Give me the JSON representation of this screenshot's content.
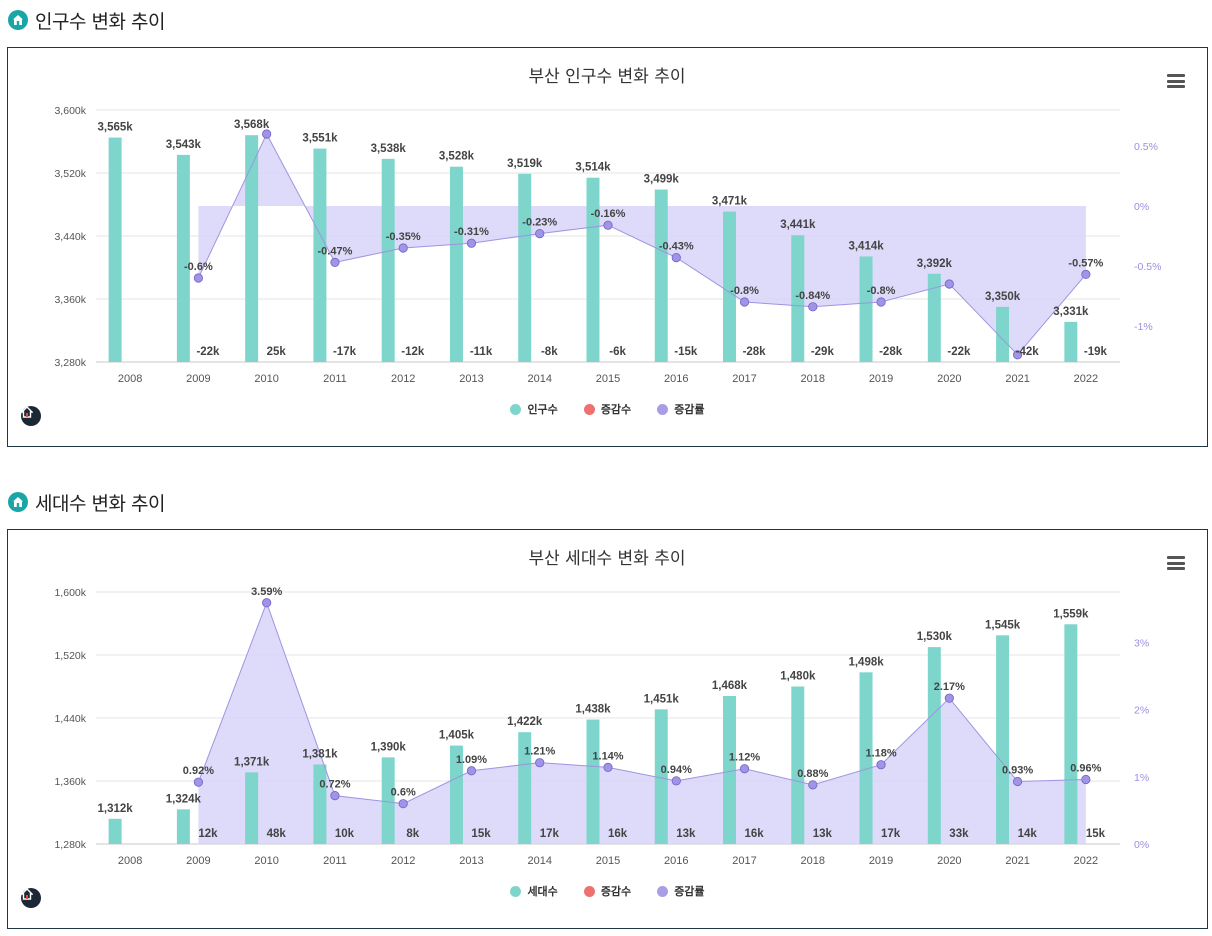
{
  "sections": [
    {
      "heading": "인구수 변화 추이",
      "chart_data": {
        "type": "bar",
        "title": "부산 인구수 변화 추이",
        "categories": [
          "2008",
          "2009",
          "2010",
          "2011",
          "2012",
          "2013",
          "2014",
          "2015",
          "2016",
          "2017",
          "2018",
          "2019",
          "2020",
          "2021",
          "2022"
        ],
        "series": [
          {
            "name": "인구수",
            "values": [
              3565,
              3543,
              3568,
              3551,
              3538,
              3528,
              3519,
              3514,
              3499,
              3471,
              3441,
              3414,
              3392,
              3350,
              3331
            ],
            "labels": [
              "3,565k",
              "3,543k",
              "3,568k",
              "3,551k",
              "3,538k",
              "3,528k",
              "3,519k",
              "3,514k",
              "3,499k",
              "3,471k",
              "3,441k",
              "3,414k",
              "3,392k",
              "3,350k",
              "3,331k"
            ]
          },
          {
            "name": "증감수",
            "values": [
              null,
              -22,
              25,
              -17,
              -12,
              -11,
              -8,
              -6,
              -15,
              -28,
              -29,
              -28,
              -22,
              -42,
              -19
            ],
            "labels": [
              "",
              "-22k",
              "25k",
              "-17k",
              "-12k",
              "-11k",
              "-8k",
              "-6k",
              "-15k",
              "-28k",
              "-29k",
              "-28k",
              "-22k",
              "-42k",
              "-19k"
            ]
          },
          {
            "name": "증감률",
            "values": [
              null,
              -0.6,
              0.6,
              -0.47,
              -0.35,
              -0.31,
              -0.23,
              -0.16,
              -0.43,
              -0.8,
              -0.84,
              -0.8,
              -0.65,
              -1.24,
              -0.57
            ],
            "labels": [
              "",
              "-0.6%",
              "",
              "-0.47%",
              "-0.35%",
              "-0.31%",
              "-0.23%",
              "-0.16%",
              "-0.43%",
              "-0.8%",
              "-0.84%",
              "-0.8%",
              "",
              "",
              "-0.57%"
            ]
          }
        ],
        "ylim": [
          3280,
          3600
        ],
        "yticks": [
          "3,280k",
          "3,360k",
          "3,440k",
          "3,520k",
          "3,600k"
        ],
        "y2lim": [
          -1.3,
          0.8
        ],
        "y2ticks": [
          {
            "v": 0.5,
            "label": "0.5%"
          },
          {
            "v": 0,
            "label": "0%"
          },
          {
            "v": -0.5,
            "label": "-0.5%"
          },
          {
            "v": -1,
            "label": "-1%"
          }
        ],
        "legend": [
          "인구수",
          "증감수",
          "증감률"
        ]
      }
    },
    {
      "heading": "세대수 변화 추이",
      "chart_data": {
        "type": "bar",
        "title": "부산 세대수 변화 추이",
        "categories": [
          "2008",
          "2009",
          "2010",
          "2011",
          "2012",
          "2013",
          "2014",
          "2015",
          "2016",
          "2017",
          "2018",
          "2019",
          "2020",
          "2021",
          "2022"
        ],
        "series": [
          {
            "name": "세대수",
            "values": [
              1312,
              1324,
              1371,
              1381,
              1390,
              1405,
              1422,
              1438,
              1451,
              1468,
              1480,
              1498,
              1530,
              1545,
              1559
            ],
            "labels": [
              "1,312k",
              "1,324k",
              "1,371k",
              "1,381k",
              "1,390k",
              "1,405k",
              "1,422k",
              "1,438k",
              "1,451k",
              "1,468k",
              "1,480k",
              "1,498k",
              "1,530k",
              "1,545k",
              "1,559k"
            ]
          },
          {
            "name": "증감수",
            "values": [
              null,
              12,
              48,
              10,
              8,
              15,
              17,
              16,
              13,
              16,
              13,
              17,
              33,
              14,
              15
            ],
            "labels": [
              "",
              "12k",
              "48k",
              "10k",
              "8k",
              "15k",
              "17k",
              "16k",
              "13k",
              "16k",
              "13k",
              "17k",
              "33k",
              "14k",
              "15k"
            ]
          },
          {
            "name": "증감률",
            "values": [
              null,
              0.92,
              3.59,
              0.72,
              0.6,
              1.09,
              1.21,
              1.14,
              0.94,
              1.12,
              0.88,
              1.18,
              2.17,
              0.93,
              0.96
            ],
            "labels": [
              "",
              "0.92%",
              "3.59%",
              "0.72%",
              "0.6%",
              "1.09%",
              "1.21%",
              "1.14%",
              "0.94%",
              "1.12%",
              "0.88%",
              "1.18%",
              "2.17%",
              "0.93%",
              "0.96%"
            ]
          }
        ],
        "ylim": [
          1280,
          1600
        ],
        "yticks": [
          "1,280k",
          "1,360k",
          "1,440k",
          "1,520k",
          "1,600k"
        ],
        "y2lim": [
          0,
          3.75
        ],
        "y2ticks": [
          {
            "v": 3,
            "label": "3%"
          },
          {
            "v": 2,
            "label": "2%"
          },
          {
            "v": 1,
            "label": "1%"
          },
          {
            "v": 0,
            "label": "0%"
          }
        ],
        "legend": [
          "세대수",
          "증감수",
          "증감률"
        ]
      }
    }
  ],
  "colors": {
    "bar": "#7dd5cb",
    "dark_bar": "#8ac7dd",
    "delta": "#f07070",
    "rate": "#a99ee6",
    "area": "#d8d4f8",
    "axis2": "#9b8fe0"
  },
  "icons": {
    "menu": "hamburger-menu-icon",
    "home": "home-icon",
    "logo": "brand-logo-icon"
  }
}
